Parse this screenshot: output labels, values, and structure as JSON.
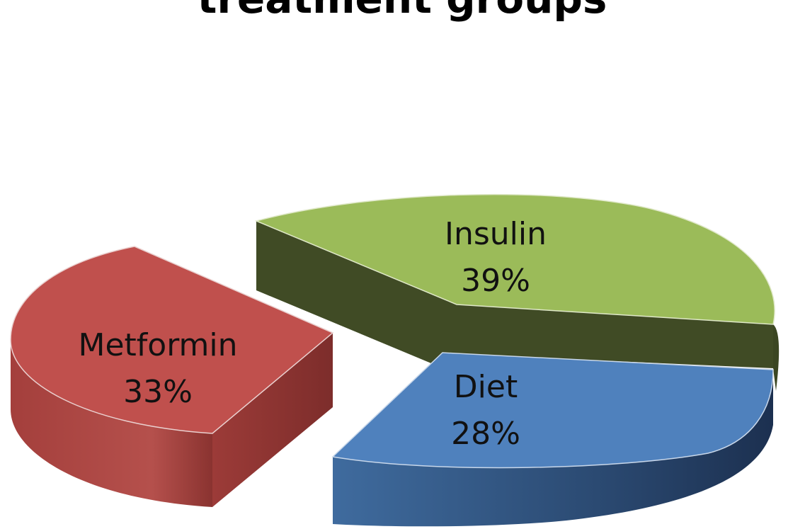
{
  "chart_data": {
    "type": "pie",
    "title": "treatment groups",
    "legend": "none",
    "slices": [
      {
        "label": "Insulin",
        "value": 39,
        "value_label": "39%",
        "color": "#9bbb59",
        "side_color": "#3f4a24"
      },
      {
        "label": "Diet",
        "value": 28,
        "value_label": "28%",
        "color": "#4f81bd",
        "side_color": "#1f3550"
      },
      {
        "label": "Metformin",
        "value": 33,
        "value_label": "33%",
        "color": "#c0504d",
        "side_color": "#8a3330"
      }
    ]
  }
}
